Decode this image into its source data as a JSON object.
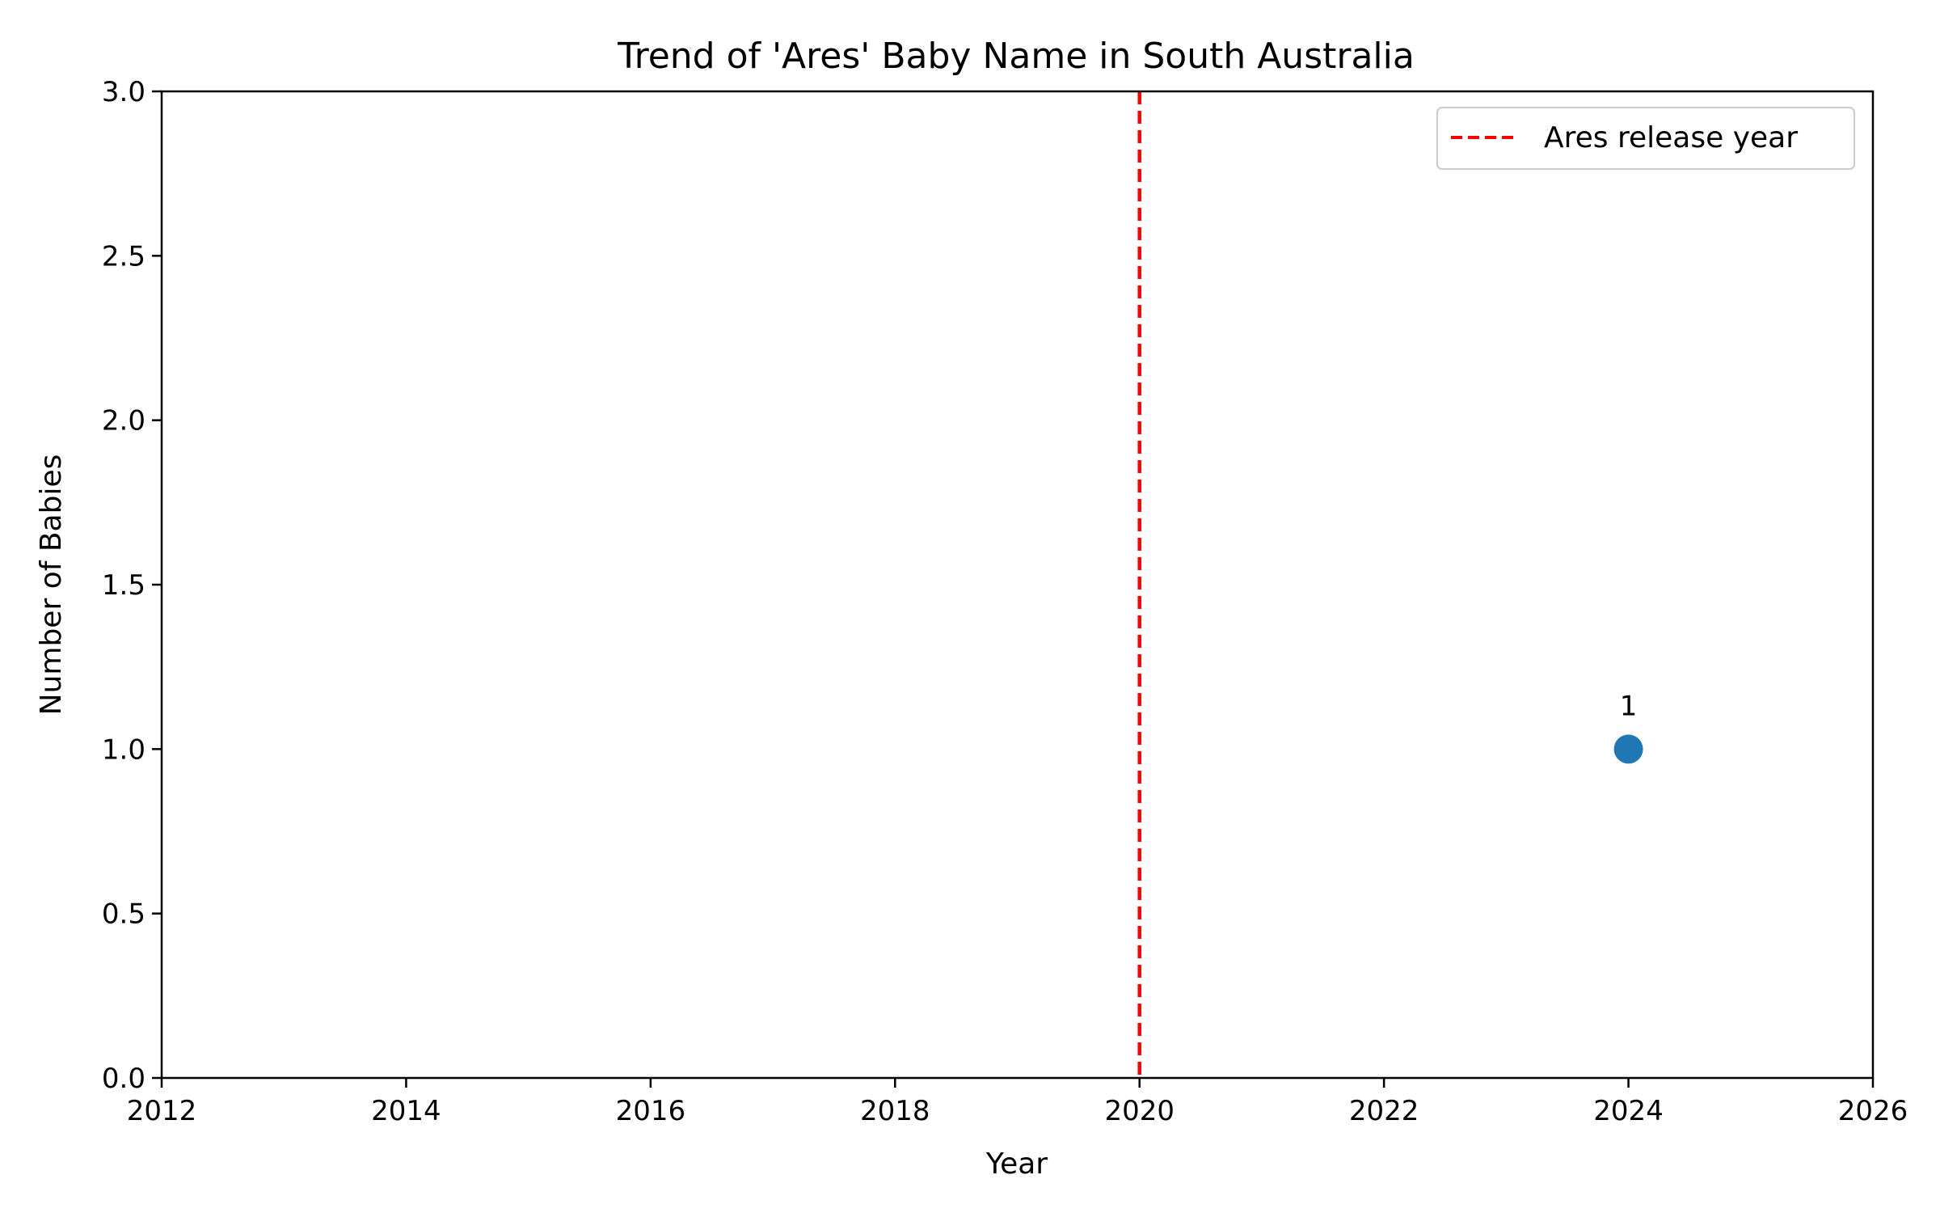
{
  "chart_data": {
    "type": "scatter",
    "title": "Trend of 'Ares' Baby Name in South Australia",
    "xlabel": "Year",
    "ylabel": "Number of Babies",
    "xlim": [
      2012,
      2026
    ],
    "ylim": [
      0,
      3
    ],
    "x_ticks": [
      "2012",
      "2014",
      "2016",
      "2018",
      "2020",
      "2022",
      "2024",
      "2026"
    ],
    "y_ticks": [
      "0.0",
      "0.5",
      "1.0",
      "1.5",
      "2.0",
      "2.5",
      "3.0"
    ],
    "grid": false,
    "series": [
      {
        "x": [
          2024
        ],
        "y": [
          1
        ],
        "labels": [
          "1"
        ],
        "color": "#1f77b4"
      }
    ],
    "reference_lines": [
      {
        "orientation": "vertical",
        "x": 2020,
        "label": "Ares release year",
        "color": "#ff0000",
        "style": "dashed"
      }
    ],
    "legend": {
      "position": "top-right",
      "entries": [
        "Ares release year"
      ]
    }
  }
}
